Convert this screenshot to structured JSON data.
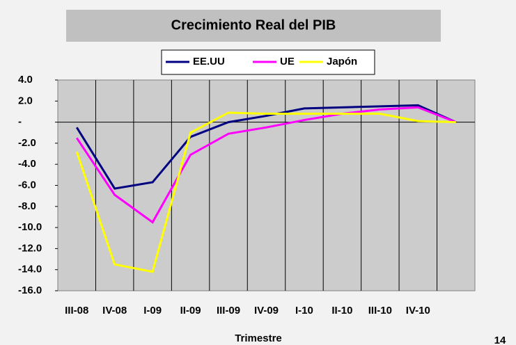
{
  "chart_data": {
    "type": "line",
    "title": "Crecimiento Real del PIB",
    "x_label": "Trimestre",
    "page_number": "14",
    "categories": [
      "III-08",
      "IV-08",
      "I-09",
      "II-09",
      "III-09",
      "IV-09",
      "I-10",
      "II-10",
      "III-10",
      "IV-10",
      null
    ],
    "series": [
      {
        "name": "EE.UU",
        "color": "#000080",
        "values": [
          -0.5,
          -6.3,
          -5.7,
          -1.4,
          0.0,
          0.6,
          1.3,
          1.4,
          1.5,
          1.6,
          0.0
        ]
      },
      {
        "name": "UE",
        "color": "#ff00ff",
        "values": [
          -1.5,
          -6.9,
          -9.5,
          -3.1,
          -1.1,
          -0.5,
          0.2,
          0.8,
          1.2,
          1.4,
          0.0
        ]
      },
      {
        "name": "Japón",
        "color": "#ffff00",
        "values": [
          -2.8,
          -13.5,
          -14.2,
          -1.0,
          0.9,
          0.8,
          0.8,
          0.8,
          0.8,
          0.1,
          0.0
        ]
      }
    ],
    "ylim": [
      -16,
      4
    ],
    "yticks": [
      {
        "value": 4,
        "label": "4.0"
      },
      {
        "value": 2,
        "label": "2.0"
      },
      {
        "value": 0,
        "label": "-"
      },
      {
        "value": -2,
        "label": "-2.0"
      },
      {
        "value": -4,
        "label": "-4.0"
      },
      {
        "value": -6,
        "label": "-6.0"
      },
      {
        "value": -8,
        "label": "-8.0"
      },
      {
        "value": -10,
        "label": "-10.0"
      },
      {
        "value": -12,
        "label": "-12.0"
      },
      {
        "value": -14,
        "label": "-14.0"
      },
      {
        "value": -16,
        "label": "-16.0"
      }
    ],
    "grid": true,
    "legend": "top"
  }
}
